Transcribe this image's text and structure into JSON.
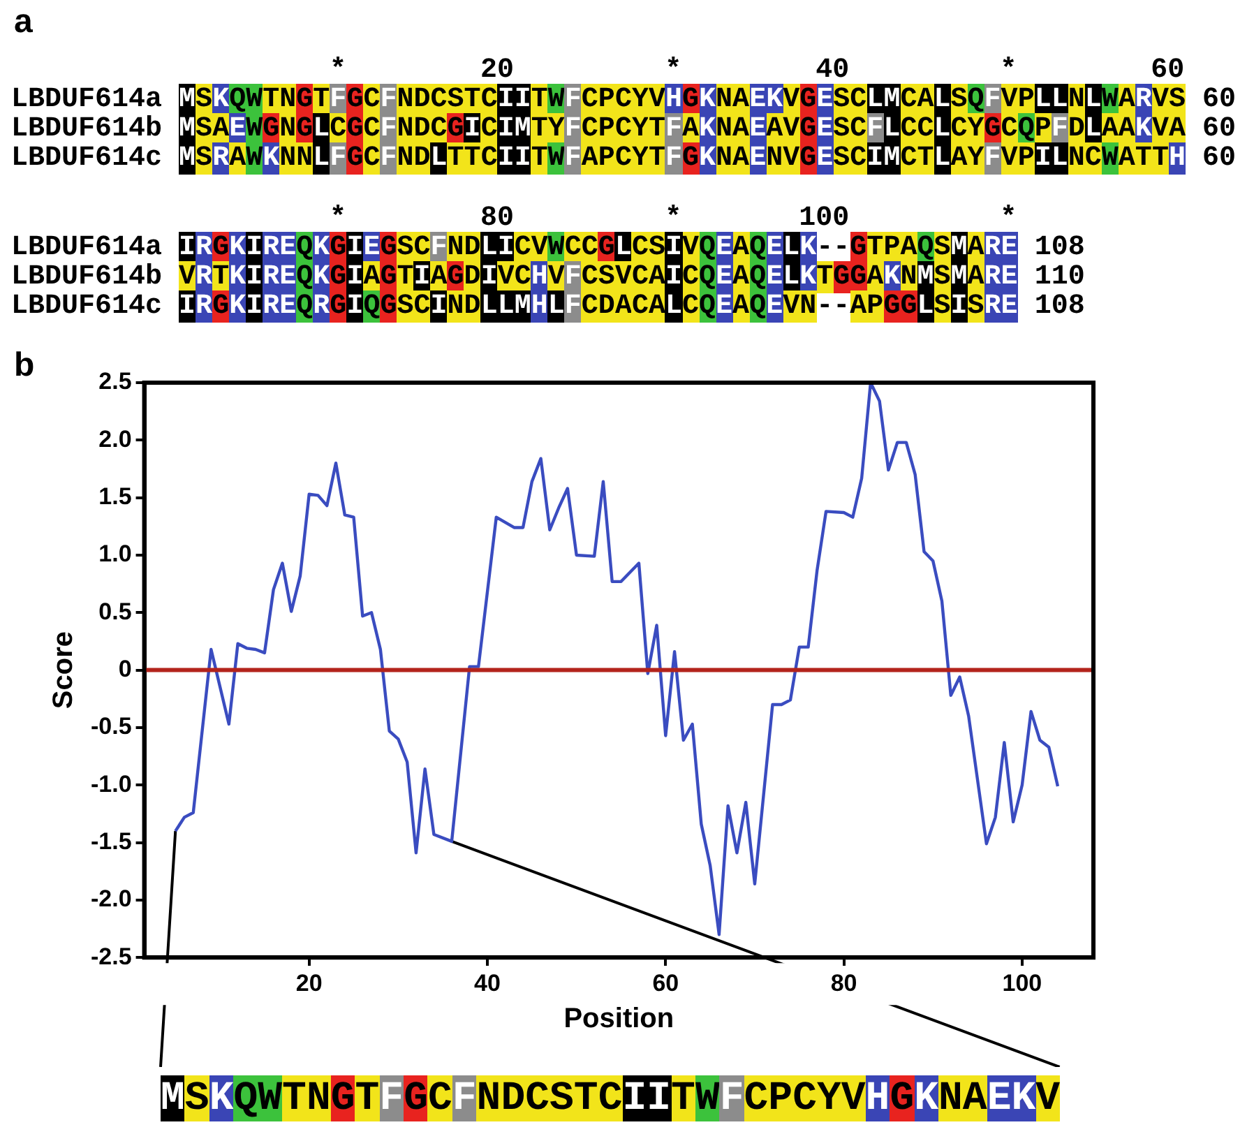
{
  "chart_data": [
    {
      "type": "other",
      "title": "a",
      "annotations": [
        "                   *        20         *        40         *        60",
        "LBDUF614a MSKQWTNGTFGCFNDCSTCIITWFCPCYVHGKNAEKVGESCLMCALSQFVPLLNLWARVS 60",
        "LBDUF614b MSAEWGNGLCGCFNDCGICIMTYFCPCYTFAKNAEAVGESCFLCCLCYGCQPFDLAAKVA 60",
        "LBDUF614c MSRAWKNNLFGCFNDLTTCIITWFAPCYTFGKNAENVGESCIMCTLAYFVPILNCWATTH 60",
        "                   *        80         *       100         *",
        "LBDUF614a IRGKIREQKGIEGSCFNDLICVWCCGLCSIVQEAQELK--GTPAQSMARE 108",
        "LBDUF614b VRTKIREQKGIAGTIAGDIVCHVFCSVCAICQEAQELKTGGAKNMSMARE 110",
        "LBDUF614c IRGKIREQRGIQGSCINDLLMHLFCDACALCQEAQEVN--APGGLSISRE 108"
      ]
    },
    {
      "type": "line",
      "title": "b",
      "xlabel": "Position",
      "ylabel": "Score",
      "annotations": [
        "MSKQWTNGTFGCFNDCSTCIITWFCPCYVHGKNAEKV"
      ],
      "xlim": [
        1.5,
        108
      ],
      "xticks": [
        20,
        40,
        60,
        80,
        100
      ],
      "ylim": [
        -2.5,
        2.5
      ],
      "yticks": [
        {
          "value": -2.5,
          "label": "-2.5"
        },
        {
          "value": -2,
          "label": "-2.0"
        },
        {
          "value": -1.5,
          "label": "-1.5"
        },
        {
          "value": -1,
          "label": "-1.0"
        },
        {
          "value": -0.5,
          "label": "-0.5"
        },
        0,
        {
          "value": 0.5,
          "label": "0.5"
        },
        {
          "value": 1,
          "label": "1.0"
        },
        {
          "value": 1.5,
          "label": "1.5"
        },
        {
          "value": 2,
          "label": "2.0"
        },
        {
          "value": 2.5,
          "label": "2.5"
        }
      ],
      "ref_lines": [
        {
          "axis": "y",
          "value": 0,
          "color": "#b3241c"
        }
      ],
      "series": [
        {
          "color": "#3a4cc0",
          "x": [
            5,
            6,
            7,
            9,
            11,
            12,
            13,
            14,
            15,
            16,
            17,
            18,
            19,
            20,
            21,
            22,
            23,
            24,
            25,
            26,
            27,
            28,
            29,
            30,
            31,
            32,
            33,
            34,
            36,
            38,
            39,
            41,
            43,
            44,
            45,
            46,
            47,
            48,
            49,
            50,
            52,
            53,
            54,
            55,
            57,
            58,
            59,
            60,
            61,
            62,
            63,
            64,
            65,
            66,
            67,
            68,
            69,
            70,
            72,
            73,
            74,
            75,
            76,
            77,
            78,
            80,
            81,
            82,
            83,
            84,
            85,
            86,
            87,
            88,
            89,
            90,
            91,
            92,
            93,
            94,
            96,
            97,
            98,
            99,
            100,
            101,
            102,
            103,
            104
          ],
          "values": [
            -1.4,
            -1.28,
            -1.24,
            0.18,
            -0.47,
            0.23,
            0.19,
            0.18,
            0.15,
            0.7,
            0.93,
            0.51,
            0.82,
            1.53,
            1.52,
            1.43,
            1.8,
            1.35,
            1.33,
            0.47,
            0.5,
            0.18,
            -0.53,
            -0.6,
            -0.8,
            -1.59,
            -0.86,
            -1.43,
            -1.49,
            0.03,
            0.03,
            1.33,
            1.24,
            1.24,
            1.64,
            1.84,
            1.22,
            1.41,
            1.58,
            1.0,
            0.99,
            1.64,
            0.77,
            0.77,
            0.93,
            -0.03,
            0.39,
            -0.57,
            0.16,
            -0.61,
            -0.47,
            -1.34,
            -1.7,
            -2.3,
            -1.18,
            -1.59,
            -1.15,
            -1.86,
            -0.3,
            -0.3,
            -0.26,
            0.2,
            0.2,
            0.87,
            1.38,
            1.37,
            1.33,
            1.67,
            2.5,
            2.34,
            1.74,
            1.98,
            1.98,
            1.7,
            1.03,
            0.95,
            0.6,
            -0.22,
            -0.06,
            -0.4,
            -1.51,
            -1.28,
            -0.63,
            -1.32,
            -1.0,
            -0.36,
            -0.61,
            -0.67,
            -1.01
          ]
        }
      ]
    }
  ]
}
